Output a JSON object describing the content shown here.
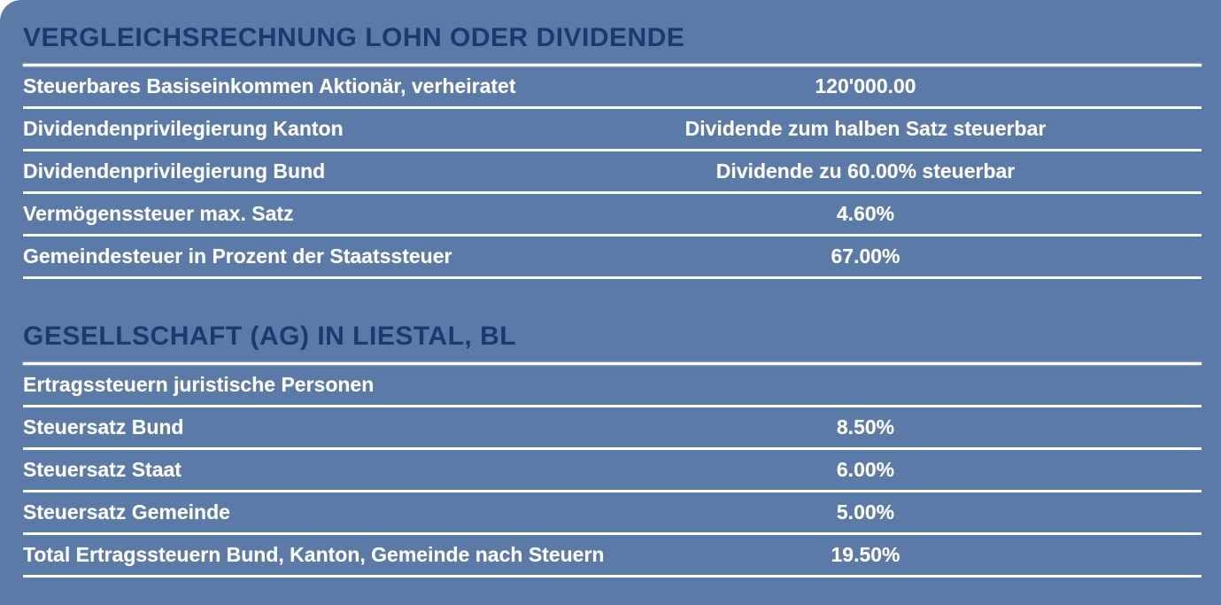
{
  "colors": {
    "background": "#5b7aa7",
    "heading": "#1c3a6e",
    "text": "#ffffff",
    "rule": "#ffffff",
    "page_margin": "#ffffff"
  },
  "document": {
    "sections": [
      {
        "title": "VERGLEICHSRECHNUNG LOHN ODER DIVIDENDE",
        "rows": [
          {
            "label": "Steuerbares Basiseinkommen Aktionär, verheiratet",
            "value": "120'000.00"
          },
          {
            "label": "Dividendenprivilegierung Kanton",
            "value": "Dividende zum halben Satz steuerbar"
          },
          {
            "label": "Dividendenprivilegierung Bund",
            "value": "Dividende zu 60.00% steuerbar"
          },
          {
            "label": "Vermögenssteuer max. Satz",
            "value": "4.60%"
          },
          {
            "label": "Gemeindesteuer in Prozent der Staatssteuer",
            "value": "67.00%"
          }
        ]
      },
      {
        "title": "GESELLSCHAFT (AG) IN LIESTAL, BL",
        "rows": [
          {
            "label": "Ertragssteuern juristische Personen",
            "value": ""
          },
          {
            "label": "Steuersatz Bund",
            "value": "8.50%"
          },
          {
            "label": "Steuersatz Staat",
            "value": "6.00%"
          },
          {
            "label": "Steuersatz Gemeinde",
            "value": "5.00%"
          },
          {
            "label": "Total Ertragssteuern Bund, Kanton, Gemeinde nach Steuern",
            "value": "19.50%"
          }
        ]
      }
    ]
  }
}
